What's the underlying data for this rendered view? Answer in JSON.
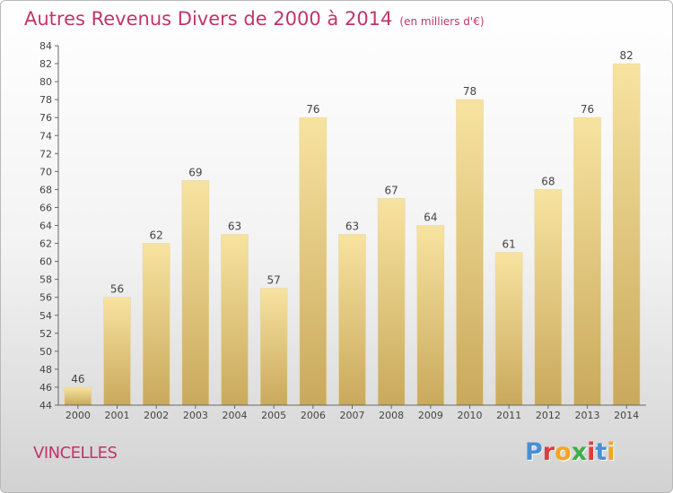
{
  "header": {
    "title": "Autres Revenus Divers de 2000 à 2014",
    "unit": "(en milliers d'€)"
  },
  "footer": {
    "city": "VINCELLES",
    "logo": "Proxiti",
    "logo_colors": [
      "#4a8fd6",
      "#e33b3b",
      "#f4a51c",
      "#3dae49",
      "#e33b3b",
      "#4a8fd6",
      "#f4a51c"
    ]
  },
  "chart_data": {
    "type": "bar",
    "categories": [
      "2000",
      "2001",
      "2002",
      "2003",
      "2004",
      "2005",
      "2006",
      "2007",
      "2008",
      "2009",
      "2010",
      "2011",
      "2012",
      "2013",
      "2014"
    ],
    "values": [
      46,
      56,
      62,
      69,
      63,
      57,
      76,
      63,
      67,
      64,
      78,
      61,
      68,
      76,
      82
    ],
    "ylim": [
      44,
      84
    ],
    "yticks": [
      44,
      46,
      48,
      50,
      52,
      54,
      56,
      58,
      60,
      62,
      64,
      66,
      68,
      70,
      72,
      74,
      76,
      78,
      80,
      82,
      84
    ],
    "grid": false,
    "data_labels": true,
    "bar_color_top": "#f7e3a0",
    "bar_color_bottom": "#c9a95c"
  }
}
